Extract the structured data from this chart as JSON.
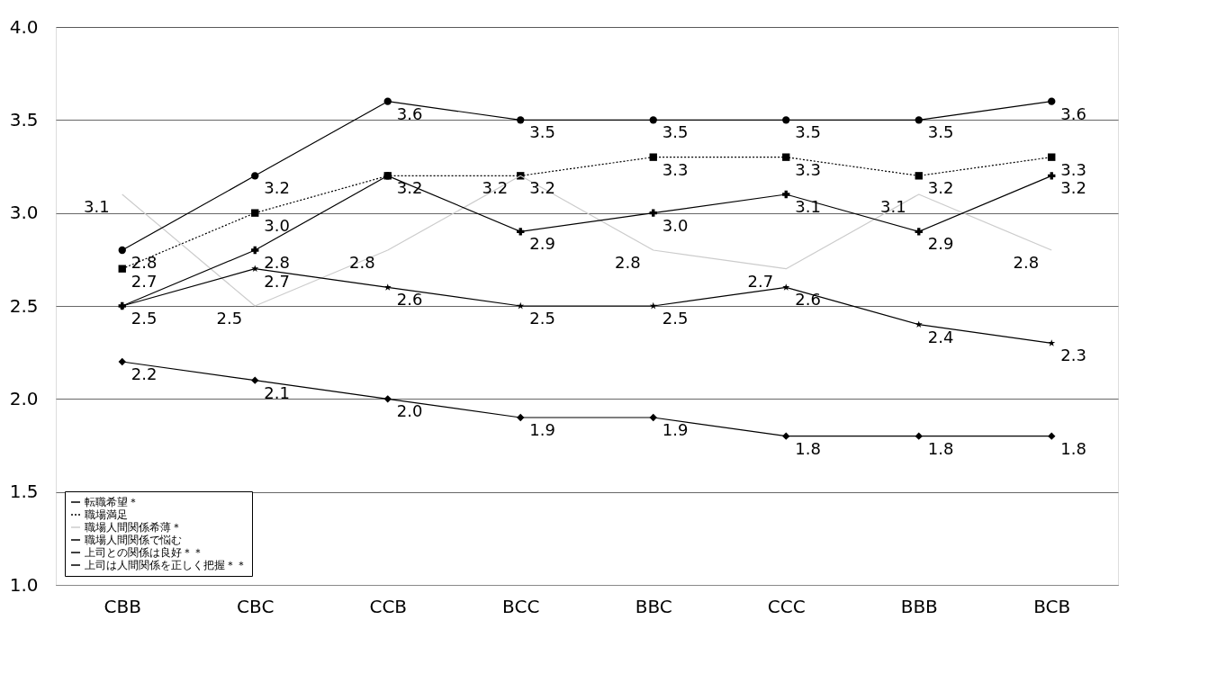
{
  "chart_data": {
    "type": "line",
    "categories": [
      "CBB",
      "CBC",
      "CCB",
      "BCC",
      "BBC",
      "CCC",
      "BBB",
      "BCB"
    ],
    "series": [
      {
        "name": "転職希望＊",
        "color": "#000000",
        "marker": "diamond",
        "line_style": "solid",
        "values": [
          2.2,
          2.1,
          2.0,
          1.9,
          1.9,
          1.8,
          1.8,
          1.8
        ],
        "value_labels": [
          "2.2",
          "2.1",
          "2.0",
          "1.9",
          "1.9",
          "1.8",
          "1.8",
          "1.8"
        ]
      },
      {
        "name": "職場満足",
        "color": "#000000",
        "marker": "square",
        "line_style": "dotted",
        "values": [
          2.7,
          3.0,
          3.2,
          3.2,
          3.3,
          3.3,
          3.2,
          3.3
        ],
        "value_labels": [
          "2.7",
          "3.0",
          "3.2",
          "3.2",
          "3.3",
          "3.3",
          "3.2",
          "3.3"
        ]
      },
      {
        "name": "職場人間関係希薄＊",
        "color": "#cccccc",
        "marker": "none",
        "line_style": "solid",
        "values": [
          3.1,
          2.5,
          2.8,
          3.2,
          2.8,
          2.7,
          3.1,
          2.8
        ],
        "value_labels": [
          "3.1",
          "2.5",
          "2.8",
          "3.2",
          "2.8",
          "2.7",
          "3.1",
          "2.8"
        ]
      },
      {
        "name": "職場人間関係で悩む",
        "color": "#000000",
        "marker": "star",
        "line_style": "solid",
        "values": [
          2.5,
          2.7,
          2.6,
          2.5,
          2.5,
          2.6,
          2.4,
          2.3
        ],
        "value_labels": [
          "2.5",
          "2.7",
          "2.6",
          "2.5",
          "2.5",
          "2.6",
          "2.4",
          "2.3"
        ]
      },
      {
        "name": "上司との関係は良好＊＊",
        "color": "#000000",
        "marker": "circle",
        "line_style": "solid",
        "values": [
          2.8,
          3.2,
          3.6,
          3.5,
          3.5,
          3.5,
          3.5,
          3.6
        ],
        "value_labels": [
          "2.8",
          "3.2",
          "3.6",
          "3.5",
          "3.5",
          "3.5",
          "3.5",
          "3.6"
        ]
      },
      {
        "name": "上司は人間関係を正しく把握＊＊",
        "color": "#000000",
        "marker": "cross",
        "line_style": "solid",
        "values": [
          2.5,
          2.8,
          3.2,
          2.9,
          3.0,
          3.1,
          2.9,
          3.2
        ],
        "value_labels": [
          null,
          "2.8",
          null,
          "2.9",
          "3.0",
          "3.1",
          "2.9",
          "3.2"
        ]
      }
    ],
    "ylim": [
      1.0,
      4.0
    ],
    "yticks": [
      {
        "value": 1,
        "label": "1.0"
      },
      {
        "value": 1.5,
        "label": "1.5"
      },
      {
        "value": 2,
        "label": "2.0"
      },
      {
        "value": 2.5,
        "label": "2.5"
      },
      {
        "value": 3,
        "label": "3.0"
      },
      {
        "value": 3.5,
        "label": "3.5"
      },
      {
        "value": 4,
        "label": "4.0"
      }
    ],
    "grid": "y",
    "legend": "bottom left"
  }
}
